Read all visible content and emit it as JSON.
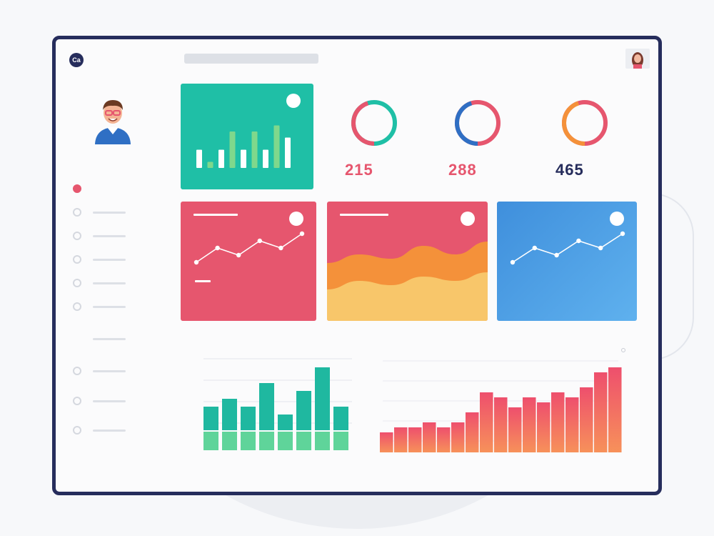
{
  "app": {
    "logo_text": "Ca"
  },
  "colors": {
    "frame": "#262d5c",
    "teal": "#1fbfa6",
    "red": "#e6566e",
    "blue": "#4c9ee2",
    "orange": "#f4913a",
    "yellow": "#f8c66a"
  },
  "icons": {
    "logo": "logo-icon",
    "user": "user-avatar-icon"
  },
  "sidebar": {
    "items": [
      {
        "label": "",
        "active": true
      },
      {
        "label": ""
      },
      {
        "label": ""
      },
      {
        "label": ""
      },
      {
        "label": ""
      },
      {
        "label": ""
      },
      {
        "label": ""
      },
      {
        "label": ""
      },
      {
        "label": ""
      },
      {
        "label": ""
      }
    ]
  },
  "stats": [
    {
      "value": "215",
      "color": "#e6566e",
      "ring": [
        "#1fbfa6",
        "#e6566e"
      ]
    },
    {
      "value": "288",
      "color": "#e6566e",
      "ring": [
        "#e6566e",
        "#2f6fc4"
      ]
    },
    {
      "value": "465",
      "color": "#262d5c",
      "ring": [
        "#e6566e",
        "#f4913a"
      ]
    }
  ],
  "chart_data": [
    {
      "type": "bar",
      "name": "teal-card-bars",
      "values": [
        3,
        1,
        3,
        6,
        3,
        6,
        3,
        7,
        5
      ]
    },
    {
      "type": "line",
      "name": "red-card-line",
      "values": [
        1,
        3,
        2,
        4,
        3,
        5
      ]
    },
    {
      "type": "area",
      "name": "wave-card",
      "series": [
        {
          "values": [
            4,
            6,
            5,
            8,
            6,
            9
          ]
        },
        {
          "values": [
            2,
            4,
            3,
            5,
            4,
            6
          ]
        }
      ]
    },
    {
      "type": "line",
      "name": "blue-card-line",
      "values": [
        1,
        3,
        2,
        4,
        3,
        5
      ]
    },
    {
      "type": "bar",
      "name": "bottom-bar-chart",
      "series": [
        {
          "values": [
            3,
            4,
            3,
            6,
            2,
            5,
            8,
            3
          ]
        },
        {
          "values": [
            3,
            3,
            3,
            3,
            3,
            3,
            3,
            3
          ]
        }
      ]
    },
    {
      "type": "bar",
      "name": "bottom-gradient-bars",
      "values": [
        2,
        2.5,
        2.5,
        3,
        2.5,
        3,
        4,
        6,
        5.5,
        4.5,
        5.5,
        5,
        6,
        5.5,
        6.5,
        8,
        8.5
      ]
    }
  ]
}
